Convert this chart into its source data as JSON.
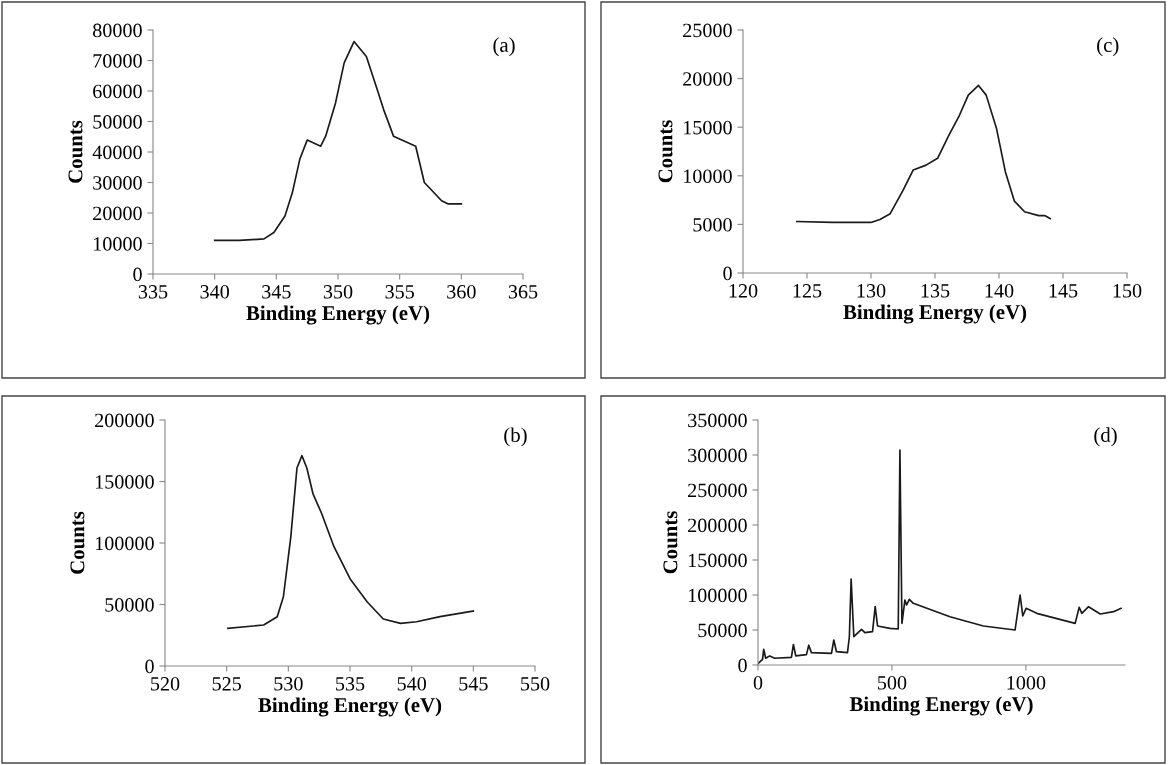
{
  "chart_data": [
    {
      "type": "line",
      "xlabel": "Binding Energy (eV)",
      "ylabel": "Counts",
      "annotations": [
        "(a)"
      ],
      "xlim": [
        335,
        365
      ],
      "ylim": [
        0,
        80000
      ],
      "xticks": [
        335,
        340,
        345,
        350,
        355,
        360,
        365
      ],
      "yticks": [
        0,
        10000,
        20000,
        30000,
        40000,
        50000,
        60000,
        70000,
        80000
      ],
      "grid": false,
      "legend": false,
      "marker": "none",
      "line_style": "solid",
      "series": [
        {
          "color": "#1a1a1a",
          "x": [
            340,
            342,
            344,
            344.8,
            345.7,
            346.3,
            346.9,
            347.5,
            348.6,
            349.0,
            349.8,
            350.5,
            351.3,
            352.3,
            353.1,
            353.7,
            354.5,
            356.3,
            357.0,
            358.4,
            358.9,
            360
          ],
          "values": [
            11000,
            11000,
            11500,
            13600,
            19000,
            26700,
            37600,
            43900,
            41900,
            45200,
            56100,
            69200,
            76200,
            71300,
            61500,
            53900,
            45200,
            41900,
            30000,
            24000,
            23000,
            23000
          ]
        }
      ]
    },
    {
      "type": "line",
      "xlabel": "Binding Energy (eV)",
      "ylabel": "Counts",
      "annotations": [
        "(c)"
      ],
      "xlim": [
        120,
        150
      ],
      "ylim": [
        0,
        25000
      ],
      "xticks": [
        120,
        125,
        130,
        135,
        140,
        145,
        150
      ],
      "yticks": [
        0,
        5000,
        10000,
        15000,
        20000,
        25000
      ],
      "grid": false,
      "legend": false,
      "marker": "none",
      "line_style": "solid",
      "series": [
        {
          "color": "#1a1a1a",
          "x": [
            124.2,
            127,
            130,
            130.7,
            131.5,
            132.5,
            133.3,
            134.3,
            135.2,
            136.1,
            136.9,
            137.6,
            138.4,
            139.0,
            139.8,
            140.5,
            141.2,
            142.0,
            143.1,
            143.6,
            144.0
          ],
          "values": [
            5300,
            5200,
            5200,
            5500,
            6100,
            8500,
            10600,
            11100,
            11800,
            14200,
            16200,
            18300,
            19300,
            18300,
            14900,
            10400,
            7400,
            6300,
            5900,
            5900,
            5600
          ]
        }
      ]
    },
    {
      "type": "line",
      "xlabel": "Binding Energy (eV)",
      "ylabel": "Counts",
      "annotations": [
        "(b)"
      ],
      "xlim": [
        520,
        550
      ],
      "ylim": [
        0,
        200000
      ],
      "xticks": [
        520,
        525,
        530,
        535,
        540,
        545,
        550
      ],
      "yticks": [
        0,
        50000,
        100000,
        150000,
        200000
      ],
      "grid": false,
      "legend": false,
      "marker": "none",
      "line_style": "solid",
      "series": [
        {
          "color": "#1a1a1a",
          "x": [
            525.1,
            528.0,
            529.1,
            529.6,
            530.2,
            530.7,
            531.1,
            531.5,
            532.0,
            532.7,
            533.7,
            535.0,
            536.4,
            537.7,
            539.1,
            540.4,
            542.3,
            545.0
          ],
          "values": [
            30600,
            33300,
            40100,
            56300,
            105000,
            161000,
            171000,
            161000,
            140000,
            124000,
            97000,
            71000,
            52000,
            38200,
            34700,
            36000,
            40100,
            44700
          ]
        }
      ]
    },
    {
      "type": "line",
      "xlabel": "Binding Energy (eV)",
      "ylabel": "Counts",
      "annotations": [
        "(d)"
      ],
      "xlim": [
        0,
        1370
      ],
      "ylim": [
        0,
        350000
      ],
      "xticks": [
        0,
        500,
        1000
      ],
      "yticks": [
        0,
        50000,
        100000,
        150000,
        200000,
        250000,
        300000,
        350000
      ],
      "grid": false,
      "legend": false,
      "marker": "none",
      "line_style": "solid",
      "series": [
        {
          "color": "#1a1a1a",
          "x": [
            0,
            17,
            21.3,
            28.8,
            43.7,
            62.4,
            124.7,
            132.2,
            141,
            180.8,
            189.5,
            199.5,
            274.3,
            283,
            293,
            334,
            341,
            347.7,
            357.7,
            386.4,
            398.9,
            427.6,
            437.5,
            446.3,
            492.4,
            523.5,
            529.8,
            537.3,
            548.5,
            554.7,
            564.7,
            579.7,
            716.7,
            841.3,
            959.7,
            978.4,
            988.4,
            1000.8,
            1040.7,
            1184,
            1199,
            1209,
            1233.9,
            1277.5,
            1327.4,
            1354.8
          ],
          "values": [
            2000,
            8000,
            22400,
            9700,
            13000,
            9700,
            11000,
            29300,
            13000,
            14800,
            28300,
            17700,
            16700,
            35700,
            19000,
            17700,
            40000,
            122700,
            40500,
            51000,
            46200,
            47600,
            83300,
            55700,
            52400,
            51400,
            307100,
            59500,
            92900,
            85700,
            93800,
            88100,
            69000,
            55700,
            50000,
            100000,
            70000,
            81000,
            73800,
            59500,
            82400,
            73800,
            83300,
            72800,
            76200,
            81000
          ]
        }
      ]
    }
  ]
}
